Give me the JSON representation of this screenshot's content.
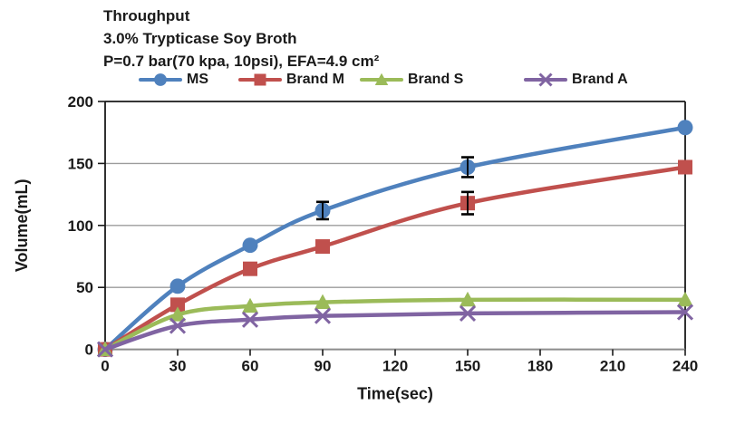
{
  "title_lines": [
    "Throughput",
    "3.0% Trypticase Soy Broth",
    "P=0.7 bar(70 kpa, 10psi), EFA=4.9 cm²"
  ],
  "chart_data": {
    "type": "line",
    "x": [
      0,
      30,
      60,
      90,
      150,
      240
    ],
    "series": [
      {
        "name": "MS",
        "marker": "circle",
        "color": "#4F81BD",
        "values": [
          0,
          51,
          84,
          112,
          147,
          179
        ],
        "errors": [
          0,
          0,
          0,
          7,
          8,
          0
        ]
      },
      {
        "name": "Brand M",
        "marker": "square",
        "color": "#C0504D",
        "values": [
          0,
          36,
          65,
          83,
          118,
          147
        ],
        "errors": [
          0,
          0,
          0,
          0,
          9,
          0
        ]
      },
      {
        "name": "Brand S",
        "marker": "triangle",
        "color": "#9BBB59",
        "values": [
          0,
          28,
          35,
          38,
          40,
          40
        ],
        "errors": [
          0,
          0,
          0,
          0,
          0,
          0
        ]
      },
      {
        "name": "Brand A",
        "marker": "x",
        "color": "#8064A2",
        "values": [
          0,
          19,
          24,
          27,
          29,
          30
        ],
        "errors": [
          0,
          0,
          0,
          0,
          0,
          0
        ]
      }
    ],
    "xlabel": "Time(sec)",
    "ylabel": "Volume(mL)",
    "xticks": [
      0,
      30,
      60,
      90,
      120,
      150,
      180,
      210,
      240
    ],
    "yticks": [
      0,
      50,
      100,
      150,
      200
    ],
    "xlim": [
      0,
      240
    ],
    "ylim": [
      0,
      200
    ],
    "grid": "horizontal",
    "legend_position": "top",
    "smooth": true,
    "error_bar_color": "#000000"
  }
}
